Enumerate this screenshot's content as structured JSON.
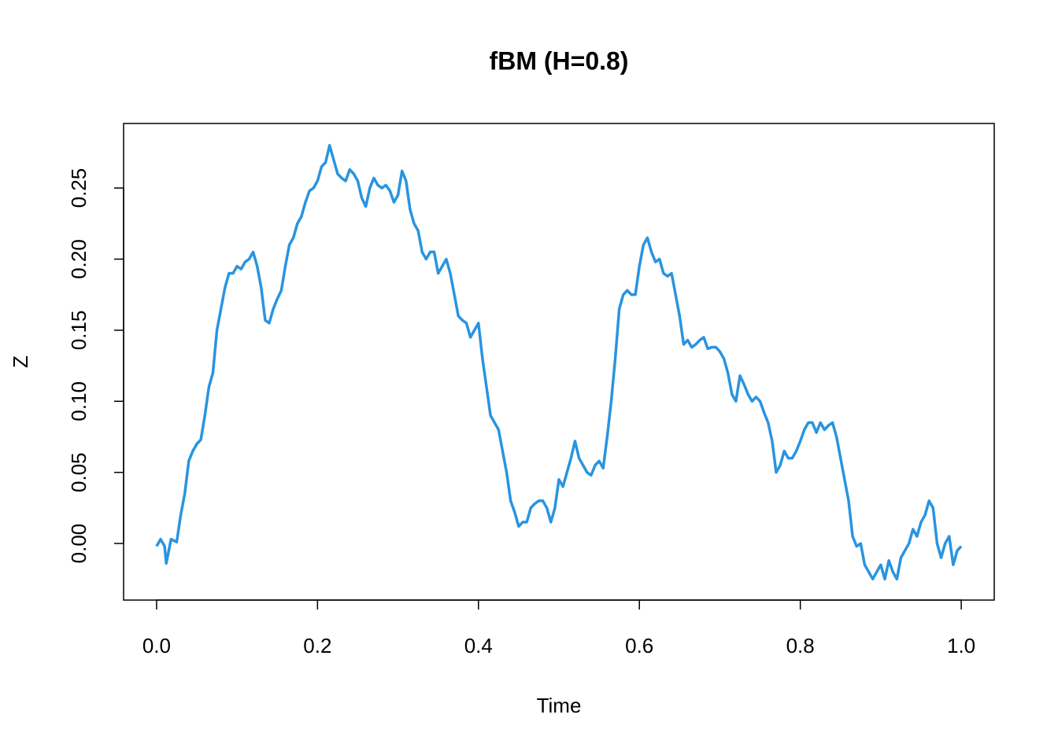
{
  "chart_data": {
    "type": "line",
    "title": "fBM (H=0.8)",
    "x_label": "Time",
    "y_label": "Z",
    "xlim": [
      -0.041,
      1.041
    ],
    "ylim": [
      -0.0398,
      0.2954
    ],
    "xticks": [
      {
        "value": 0,
        "label": "0.0"
      },
      0.2,
      0.4,
      0.6,
      0.8,
      {
        "value": 1,
        "label": "1.0"
      }
    ],
    "yticks": [
      {
        "value": 0,
        "label": "0.00"
      },
      0.05,
      {
        "value": 0.1,
        "label": "0.10"
      },
      0.15,
      {
        "value": 0.2,
        "label": "0.20"
      },
      0.25
    ],
    "x": [
      0,
      0.005,
      0.01,
      0.012,
      0.018,
      0.025,
      0.03,
      0.035,
      0.04,
      0.045,
      0.05,
      0.055,
      0.06,
      0.065,
      0.07,
      0.075,
      0.08,
      0.085,
      0.09,
      0.095,
      0.1,
      0.105,
      0.11,
      0.115,
      0.12,
      0.125,
      0.13,
      0.135,
      0.14,
      0.145,
      0.15,
      0.155,
      0.16,
      0.165,
      0.17,
      0.175,
      0.18,
      0.185,
      0.19,
      0.195,
      0.2,
      0.205,
      0.21,
      0.215,
      0.22,
      0.225,
      0.23,
      0.235,
      0.24,
      0.245,
      0.25,
      0.255,
      0.26,
      0.265,
      0.27,
      0.275,
      0.28,
      0.285,
      0.29,
      0.295,
      0.3,
      0.305,
      0.31,
      0.315,
      0.32,
      0.325,
      0.33,
      0.335,
      0.34,
      0.345,
      0.35,
      0.355,
      0.36,
      0.365,
      0.37,
      0.375,
      0.38,
      0.385,
      0.39,
      0.395,
      0.4,
      0.405,
      0.41,
      0.415,
      0.42,
      0.425,
      0.43,
      0.435,
      0.44,
      0.445,
      0.45,
      0.455,
      0.46,
      0.465,
      0.47,
      0.475,
      0.48,
      0.485,
      0.49,
      0.495,
      0.5,
      0.505,
      0.51,
      0.515,
      0.52,
      0.525,
      0.53,
      0.535,
      0.54,
      0.545,
      0.55,
      0.555,
      0.56,
      0.565,
      0.57,
      0.575,
      0.58,
      0.585,
      0.59,
      0.595,
      0.6,
      0.605,
      0.61,
      0.615,
      0.62,
      0.625,
      0.63,
      0.635,
      0.64,
      0.645,
      0.65,
      0.655,
      0.66,
      0.665,
      0.67,
      0.675,
      0.68,
      0.685,
      0.69,
      0.695,
      0.7,
      0.705,
      0.71,
      0.715,
      0.72,
      0.725,
      0.73,
      0.735,
      0.74,
      0.745,
      0.75,
      0.755,
      0.76,
      0.765,
      0.77,
      0.775,
      0.78,
      0.785,
      0.79,
      0.795,
      0.8,
      0.805,
      0.81,
      0.815,
      0.82,
      0.825,
      0.83,
      0.835,
      0.84,
      0.845,
      0.85,
      0.855,
      0.86,
      0.865,
      0.87,
      0.875,
      0.88,
      0.885,
      0.89,
      0.895,
      0.9,
      0.905,
      0.91,
      0.915,
      0.92,
      0.925,
      0.93,
      0.935,
      0.94,
      0.945,
      0.95,
      0.955,
      0.96,
      0.965,
      0.97,
      0.975,
      0.98,
      0.985,
      0.99,
      0.995,
      1
    ],
    "series": [
      {
        "color": "#2994e0",
        "values": [
          -0.002,
          0.003,
          -0.002,
          -0.014,
          0.003,
          0.001,
          0.02,
          0.035,
          0.058,
          0.065,
          0.07,
          0.073,
          0.09,
          0.11,
          0.12,
          0.15,
          0.165,
          0.18,
          0.19,
          0.19,
          0.195,
          0.193,
          0.198,
          0.2,
          0.205,
          0.195,
          0.18,
          0.157,
          0.155,
          0.165,
          0.172,
          0.178,
          0.195,
          0.21,
          0.215,
          0.225,
          0.23,
          0.24,
          0.248,
          0.25,
          0.255,
          0.265,
          0.268,
          0.28,
          0.27,
          0.26,
          0.257,
          0.255,
          0.263,
          0.26,
          0.255,
          0.243,
          0.237,
          0.25,
          0.257,
          0.252,
          0.25,
          0.252,
          0.248,
          0.24,
          0.245,
          0.262,
          0.255,
          0.235,
          0.225,
          0.22,
          0.205,
          0.2,
          0.205,
          0.205,
          0.19,
          0.195,
          0.2,
          0.19,
          0.175,
          0.16,
          0.157,
          0.155,
          0.145,
          0.15,
          0.155,
          0.13,
          0.11,
          0.09,
          0.085,
          0.08,
          0.065,
          0.05,
          0.03,
          0.022,
          0.012,
          0.015,
          0.015,
          0.025,
          0.028,
          0.03,
          0.03,
          0.025,
          0.015,
          0.025,
          0.045,
          0.04,
          0.05,
          0.06,
          0.072,
          0.06,
          0.055,
          0.05,
          0.048,
          0.055,
          0.058,
          0.053,
          0.075,
          0.1,
          0.13,
          0.165,
          0.175,
          0.178,
          0.175,
          0.175,
          0.195,
          0.21,
          0.215,
          0.205,
          0.198,
          0.2,
          0.19,
          0.188,
          0.19,
          0.175,
          0.16,
          0.14,
          0.143,
          0.138,
          0.14,
          0.143,
          0.145,
          0.137,
          0.138,
          0.138,
          0.135,
          0.13,
          0.12,
          0.105,
          0.1,
          0.118,
          0.112,
          0.105,
          0.1,
          0.103,
          0.1,
          0.092,
          0.085,
          0.072,
          0.05,
          0.055,
          0.065,
          0.06,
          0.06,
          0.065,
          0.072,
          0.08,
          0.085,
          0.085,
          0.078,
          0.085,
          0.08,
          0.083,
          0.085,
          0.075,
          0.06,
          0.045,
          0.03,
          0.005,
          -0.002,
          0,
          -0.015,
          -0.02,
          -0.025,
          -0.02,
          -0.015,
          -0.025,
          -0.012,
          -0.02,
          -0.025,
          -0.01,
          -0.005,
          0,
          0.01,
          0.005,
          0.015,
          0.02,
          0.03,
          0.025,
          0,
          -0.01,
          0,
          0.005,
          -0.015,
          -0.005,
          -0.002
        ]
      }
    ]
  }
}
